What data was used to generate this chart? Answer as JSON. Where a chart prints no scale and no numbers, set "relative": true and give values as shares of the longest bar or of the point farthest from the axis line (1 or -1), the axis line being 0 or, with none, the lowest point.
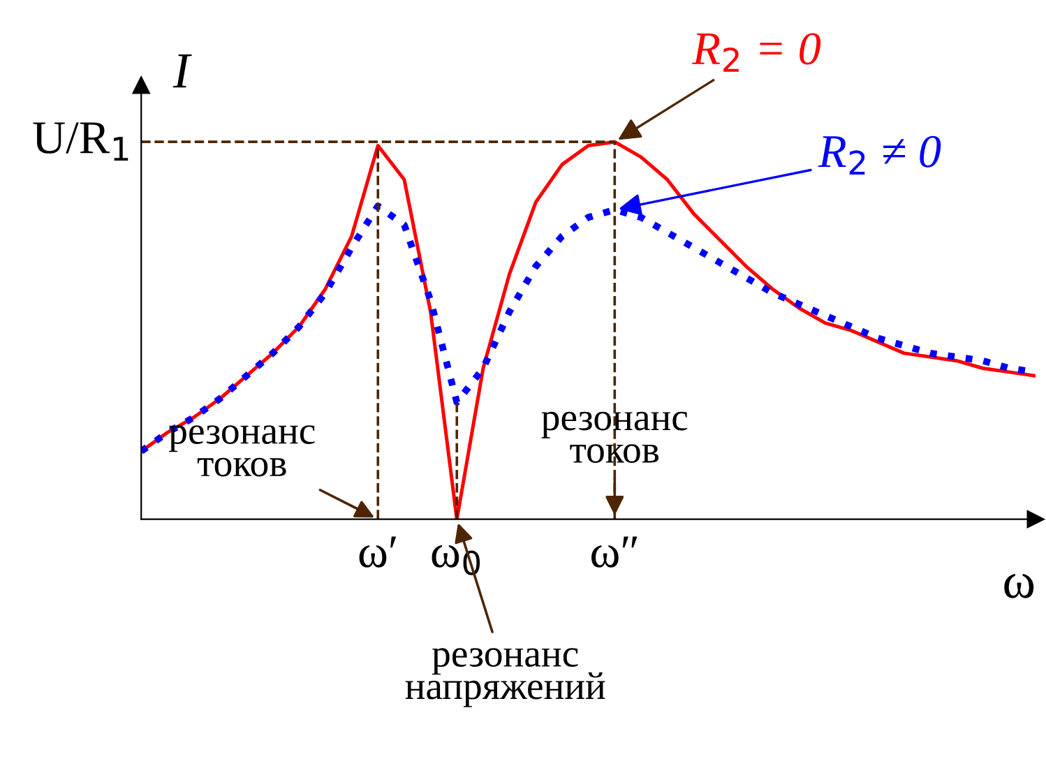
{
  "chart_data": {
    "type": "line",
    "relative": true,
    "xlabel": "ω",
    "ylabel": "I",
    "marker": "none",
    "grid": false,
    "legend": false,
    "categories": [
      null,
      null,
      null,
      null,
      null,
      null,
      null,
      null,
      null,
      "ω′",
      null,
      null,
      "ω$_{0}$",
      null,
      null,
      null,
      null,
      null,
      "ω″",
      null,
      null,
      null,
      null,
      null,
      null,
      null,
      null,
      null,
      null,
      null,
      null,
      null,
      null,
      null,
      null
    ],
    "series": [
      {
        "name": "R$_{2}$ = 0",
        "color": "#ff0000",
        "line_style": "solid",
        "values": [
          0.18,
          0.23,
          0.27,
          0.32,
          0.38,
          0.44,
          0.51,
          0.61,
          0.75,
          0.99,
          0.9,
          0.55,
          0,
          0.4,
          0.65,
          0.84,
          0.94,
          0.99,
          1.0,
          0.96,
          0.9,
          0.81,
          0.74,
          0.67,
          0.61,
          0.56,
          0.52,
          0.5,
          0.47,
          0.44,
          0.43,
          0.42,
          0.4,
          0.39,
          0.38
        ]
      },
      {
        "name": "R$_{2}$ ≠ 0",
        "color": "#0000ff",
        "line_style": "dotted",
        "values": [
          0.18,
          0.23,
          0.27,
          0.32,
          0.38,
          0.44,
          0.51,
          0.6,
          0.72,
          0.83,
          0.78,
          0.58,
          0.31,
          0.4,
          0.55,
          0.67,
          0.75,
          0.8,
          0.82,
          0.8,
          0.76,
          0.72,
          0.68,
          0.64,
          0.6,
          0.57,
          0.54,
          0.51,
          0.48,
          0.46,
          0.44,
          0.43,
          0.42,
          0.4,
          0.39
        ]
      }
    ],
    "ref_lines": [
      {
        "axis": "y",
        "value": 1,
        "label": "U/R$_{1}$",
        "color": "#4d2600",
        "line_style": "dashed"
      },
      {
        "axis": "x",
        "value": "ω′",
        "color": "#4d2600",
        "line_style": "dashed"
      },
      {
        "axis": "x",
        "value": "ω$_{0}$",
        "color": "#4d2600",
        "line_style": "dashed"
      },
      {
        "axis": "x",
        "value": "ω″",
        "color": "#4d2600",
        "line_style": "dashed"
      }
    ],
    "annotations": [
      {
        "text": "резонанс\nтоков",
        "x": "ω′",
        "y": 0
      },
      {
        "text": "резонанс\nнапряжений",
        "x": "ω$_{0}$",
        "y": 0
      },
      {
        "text": "резонанс\nтоков",
        "x": "ω″",
        "y": 0
      }
    ]
  }
}
